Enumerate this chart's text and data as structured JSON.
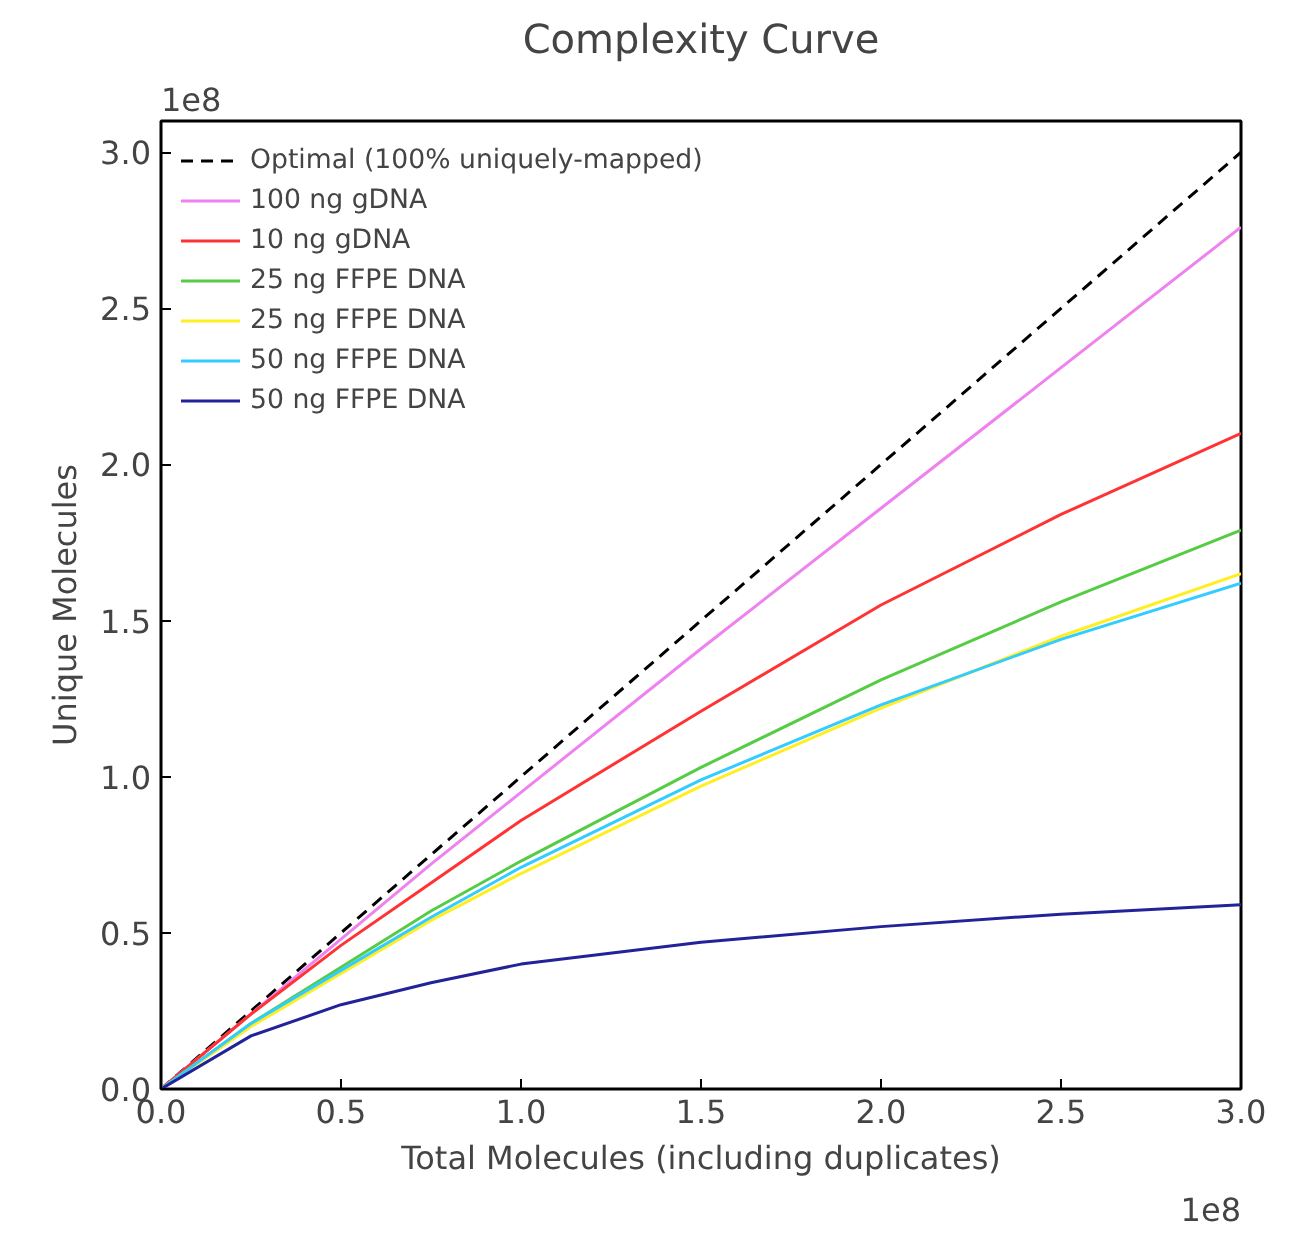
{
  "chart_data": {
    "type": "line",
    "title": "Complexity Curve",
    "xlabel": "Total Molecules (including duplicates)",
    "ylabel": "Unique Molecules",
    "x": [
      0,
      0.25,
      0.5,
      0.75,
      1.0,
      1.5,
      2.0,
      2.5,
      3.0
    ],
    "series": [
      {
        "name": "Optimal (100% uniquely-mapped)",
        "color": "#000000",
        "line_style": "dashed",
        "values": [
          0,
          0.25,
          0.5,
          0.75,
          1.0,
          1.5,
          2.0,
          2.5,
          3.0
        ]
      },
      {
        "name": "100 ng gDNA",
        "color": "#ee82ee",
        "values": [
          0,
          0.24,
          0.48,
          0.72,
          0.95,
          1.41,
          1.86,
          2.31,
          2.76
        ]
      },
      {
        "name": "10 ng gDNA",
        "color": "#ff3333",
        "values": [
          0,
          0.24,
          0.46,
          0.66,
          0.86,
          1.21,
          1.55,
          1.84,
          2.1
        ]
      },
      {
        "name": "25 ng FFPE DNA",
        "color": "#55cc44",
        "values": [
          0,
          0.21,
          0.39,
          0.57,
          0.73,
          1.03,
          1.31,
          1.56,
          1.79
        ]
      },
      {
        "name": "25 ng FFPE DNA",
        "color": "#ffee22",
        "values": [
          0,
          0.2,
          0.37,
          0.54,
          0.69,
          0.97,
          1.22,
          1.45,
          1.65
        ]
      },
      {
        "name": "50 ng FFPE DNA",
        "color": "#33ccff",
        "values": [
          0,
          0.21,
          0.38,
          0.55,
          0.71,
          0.99,
          1.23,
          1.44,
          1.62
        ]
      },
      {
        "name": "50 ng FFPE DNA",
        "color": "#222299",
        "values": [
          0,
          0.17,
          0.27,
          0.34,
          0.4,
          0.47,
          0.52,
          0.56,
          0.59
        ]
      }
    ],
    "xlim": [
      0,
      3.0
    ],
    "ylim": [
      0,
      3.1
    ],
    "xticks": [
      {
        "value": 0,
        "label": "0.0"
      },
      0.5,
      {
        "value": 1,
        "label": "1.0"
      },
      1.5,
      {
        "value": 2,
        "label": "2.0"
      },
      2.5,
      {
        "value": 3,
        "label": "3.0"
      }
    ],
    "yticks": [
      {
        "value": 0,
        "label": "0.0"
      },
      0.5,
      {
        "value": 1,
        "label": "1.0"
      },
      1.5,
      {
        "value": 2,
        "label": "2.0"
      },
      2.5,
      {
        "value": 3,
        "label": "3.0"
      }
    ],
    "annotations": [
      "1e8",
      "1e8"
    ],
    "legend": "top left",
    "grid": false,
    "line_style": "solid"
  }
}
